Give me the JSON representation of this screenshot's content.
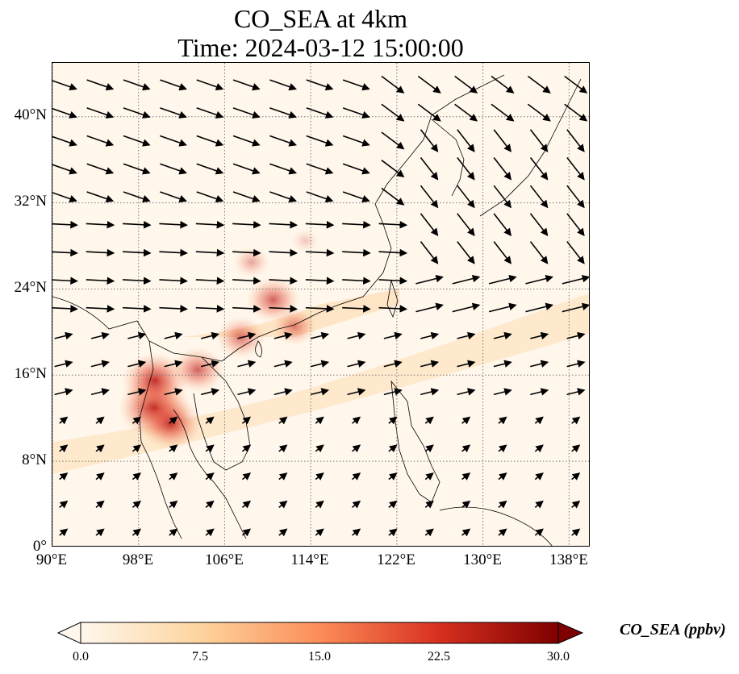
{
  "title": {
    "line1": "CO_SEA at 4km",
    "line2": "Time: 2024-03-12 15:00:00"
  },
  "map_data": {
    "type": "heatmap",
    "variable": "CO_SEA",
    "units": "ppbv",
    "lon_range": [
      90,
      140
    ],
    "lat_range": [
      0,
      45
    ],
    "lon_ticks": [
      "90°E",
      "98°E",
      "106°E",
      "114°E",
      "122°E",
      "130°E",
      "138°E"
    ],
    "lon_values": [
      90,
      98,
      106,
      114,
      122,
      130,
      138
    ],
    "lat_ticks": [
      "0°",
      "8°N",
      "16°N",
      "24°N",
      "32°N",
      "40°N"
    ],
    "lat_values": [
      0,
      8,
      16,
      24,
      32,
      40
    ],
    "grid": true,
    "overlay": "wind vectors",
    "colormap": [
      "#fff7ec",
      "#fdd49e",
      "#fc8d59",
      "#d7301f",
      "#7f0000"
    ],
    "plumes": [
      {
        "lon": 99.5,
        "lat": 13.0,
        "value": 27
      },
      {
        "lon": 101.0,
        "lat": 11.5,
        "value": 22
      },
      {
        "lon": 99.5,
        "lat": 15.5,
        "value": 24
      },
      {
        "lon": 103.5,
        "lat": 16.5,
        "value": 18
      },
      {
        "lon": 107.5,
        "lat": 19.5,
        "value": 16
      },
      {
        "lon": 110.5,
        "lat": 23.0,
        "value": 18
      },
      {
        "lon": 112.5,
        "lat": 20.5,
        "value": 14
      },
      {
        "lon": 108.5,
        "lat": 26.5,
        "value": 10
      },
      {
        "lon": 113.5,
        "lat": 28.5,
        "value": 6
      }
    ]
  },
  "colorbar": {
    "label": "CO_SEA (ppbv)",
    "ticks": [
      "0.0",
      "7.5",
      "15.0",
      "22.5",
      "30.0"
    ],
    "min": 0,
    "max": 30
  }
}
